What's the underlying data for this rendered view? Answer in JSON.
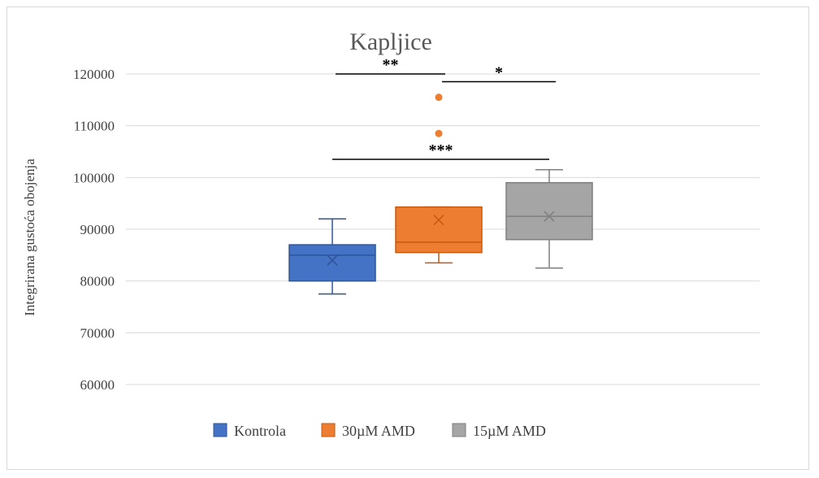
{
  "chart_data": {
    "type": "box",
    "title": "Kapljice",
    "xlabel": "",
    "ylabel": "Integrirana gustoća obojenja",
    "ylim": [
      60000,
      120000
    ],
    "yticks": [
      "60000",
      "70000",
      "80000",
      "90000",
      "100000",
      "110000",
      "120000"
    ],
    "legend_position": "bottom",
    "grid": true,
    "series": [
      {
        "name": "Kontrola",
        "color": "#4472c4",
        "edge": "#2f5597",
        "whisker_low": 77500,
        "q1": 80000,
        "median": 85000,
        "q3": 87000,
        "whisker_high": 92000,
        "mean": 84000,
        "outliers": []
      },
      {
        "name": "30µM AMD",
        "color": "#ed7d31",
        "edge": "#c55a11",
        "whisker_low": 83500,
        "q1": 85500,
        "median": 87500,
        "q3": 94300,
        "whisker_high": 94300,
        "mean": 91800,
        "outliers": [
          108500,
          115500
        ]
      },
      {
        "name": "15µM AMD",
        "color": "#a5a5a5",
        "edge": "#7f7f7f",
        "whisker_low": 82500,
        "q1": 88000,
        "median": 92500,
        "q3": 99000,
        "whisker_high": 101500,
        "mean": 92500,
        "outliers": []
      }
    ],
    "significance": [
      {
        "label": "**",
        "from": 0,
        "to": 1,
        "y": 120000
      },
      {
        "label": "*",
        "from": 1,
        "to": 2,
        "y": 118500
      },
      {
        "label": "***",
        "from": 0,
        "to": 2,
        "y": 103500
      }
    ]
  }
}
